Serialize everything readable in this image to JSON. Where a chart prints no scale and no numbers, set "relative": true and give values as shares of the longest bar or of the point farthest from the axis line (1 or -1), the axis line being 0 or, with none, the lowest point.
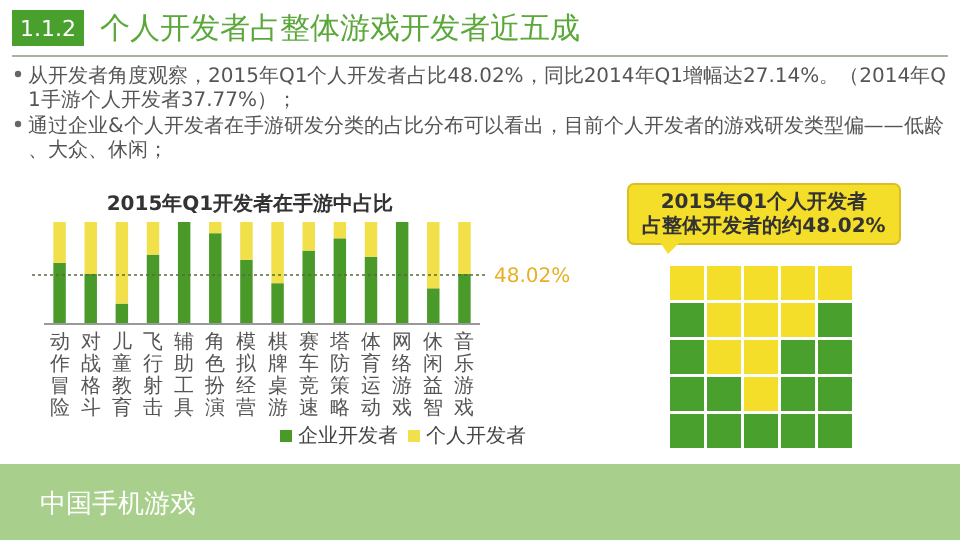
{
  "chart_data": [
    {
      "type": "bar",
      "title": "2015年Q1开发者在手游中占比",
      "relative": true,
      "stacked": true,
      "legend": "bottom right",
      "categories": [
        "动作冒险",
        "对战格斗",
        "儿童教育",
        "飞行射击",
        "辅助工具",
        "角色扮演",
        "模拟经营",
        "棋牌桌游",
        "赛车竞速",
        "塔防策略",
        "体育运动",
        "网络游戏",
        "休闲益智",
        "音乐游戏"
      ],
      "series": [
        {
          "name": "企业开发者",
          "color": "#4a9a2a",
          "values": [
            0.6,
            0.49,
            0.2,
            0.68,
            1.0,
            0.89,
            0.63,
            0.4,
            0.72,
            0.84,
            0.66,
            1.0,
            0.35,
            0.49
          ]
        },
        {
          "name": "个人开发者",
          "color": "#f2e04a",
          "values": [
            0.4,
            0.51,
            0.8,
            0.32,
            0.0,
            0.11,
            0.37,
            0.6,
            0.28,
            0.16,
            0.34,
            0.0,
            0.65,
            0.51
          ]
        }
      ],
      "ref_lines": [
        {
          "axis": "y",
          "value": 0.4802,
          "label": "48.02%",
          "color": "#556b3a",
          "line_style": "dotted"
        }
      ],
      "annotations": [
        "1.1.2",
        "个人开发者占整体游戏开发者近五成",
        "从开发者角度观察，2015年Q1个人开发者占比48.02%，同比2014年Q1增幅达27.14%。（2014年Q1手游个人开发者37.77%）；",
        "通过企业&个人开发者在手游研发分类的占比分布可以看出，目前个人开发者的游戏研发类型偏——低龄、大众、休闲；",
        "中国手机游戏"
      ]
    },
    {
      "type": "other",
      "title": "2015年Q1个人开发者占整体开发者的约48.02%"
    }
  ]
}
